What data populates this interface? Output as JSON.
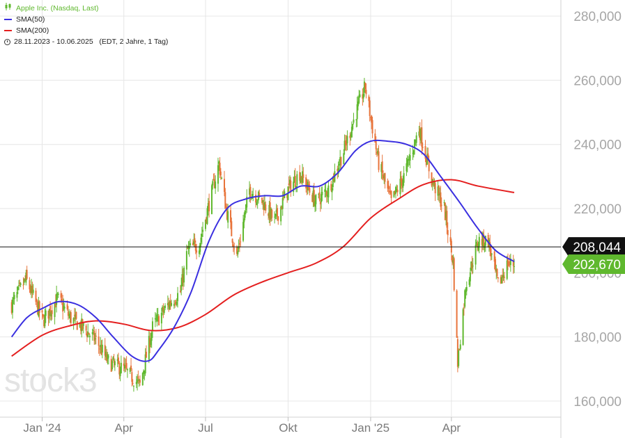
{
  "legend": {
    "series": "Apple Inc. (Nasdaq, Last)",
    "sma50": "SMA(50)",
    "sma200": "SMA(200)",
    "range": "28.11.2023 - 10.06.2025   (EDT, 2 Jahre, 1 Tag)"
  },
  "watermark": "stock3",
  "colors": {
    "up": "#5fb82e",
    "down": "#e8743b",
    "sma50": "#3a2fe0",
    "sma200": "#e41f1f",
    "grid": "#e6e6e6",
    "last_box": "#5fb82e",
    "marker_box": "#111111"
  },
  "chart_data": {
    "type": "line",
    "title": "Apple Inc. (Nasdaq, Last)",
    "ylim": [
      155,
      285
    ],
    "y_ticks": [
      "280,000",
      "260,000",
      "240,000",
      "220,000",
      "200,000",
      "180,000",
      "160,000"
    ],
    "y_tick_values": [
      280,
      260,
      240,
      220,
      200,
      180,
      160
    ],
    "x_ticks": [
      "Jan '24",
      "Apr",
      "Jul",
      "Okt",
      "Jan '25",
      "Apr"
    ],
    "x_tick_dates": [
      "2024-01-01",
      "2024-04-01",
      "2024-07-01",
      "2024-10-01",
      "2025-01-01",
      "2025-04-01"
    ],
    "x_range": [
      "2023-11-15",
      "2025-08-01"
    ],
    "reference_line": {
      "value": 208.044,
      "label": "208,044"
    },
    "last_value": {
      "value": 202.67,
      "label": "202,670"
    },
    "price": [
      [
        "2023-11-28",
        190
      ],
      [
        "2023-12-14",
        198
      ],
      [
        "2024-01-02",
        185
      ],
      [
        "2024-01-18",
        192
      ],
      [
        "2024-02-01",
        186
      ],
      [
        "2024-02-15",
        183
      ],
      [
        "2024-03-01",
        179
      ],
      [
        "2024-03-15",
        172
      ],
      [
        "2024-04-01",
        170
      ],
      [
        "2024-04-19",
        165
      ],
      [
        "2024-05-03",
        183
      ],
      [
        "2024-05-20",
        190
      ],
      [
        "2024-06-03",
        194
      ],
      [
        "2024-06-11",
        207
      ],
      [
        "2024-06-24",
        209
      ],
      [
        "2024-07-08",
        225
      ],
      [
        "2024-07-16",
        234
      ],
      [
        "2024-07-24",
        220
      ],
      [
        "2024-08-05",
        205
      ],
      [
        "2024-08-19",
        226
      ],
      [
        "2024-09-03",
        222
      ],
      [
        "2024-09-16",
        216
      ],
      [
        "2024-10-01",
        226
      ],
      [
        "2024-10-14",
        231
      ],
      [
        "2024-11-01",
        222
      ],
      [
        "2024-11-15",
        226
      ],
      [
        "2024-12-02",
        238
      ],
      [
        "2024-12-16",
        250
      ],
      [
        "2024-12-26",
        258
      ],
      [
        "2025-01-10",
        234
      ],
      [
        "2025-01-24",
        222
      ],
      [
        "2025-02-07",
        230
      ],
      [
        "2025-02-24",
        245
      ],
      [
        "2025-03-10",
        229
      ],
      [
        "2025-03-24",
        220
      ],
      [
        "2025-04-03",
        203
      ],
      [
        "2025-04-08",
        172
      ],
      [
        "2025-04-17",
        196
      ],
      [
        "2025-05-01",
        210
      ],
      [
        "2025-05-12",
        210
      ],
      [
        "2025-05-23",
        196
      ],
      [
        "2025-06-03",
        203
      ],
      [
        "2025-06-10",
        202.67
      ]
    ],
    "sma50": [
      [
        "2023-11-28",
        180
      ],
      [
        "2023-12-15",
        186
      ],
      [
        "2024-01-02",
        189
      ],
      [
        "2024-01-20",
        191
      ],
      [
        "2024-02-10",
        190
      ],
      [
        "2024-03-01",
        186
      ],
      [
        "2024-03-20",
        180
      ],
      [
        "2024-04-10",
        174
      ],
      [
        "2024-04-28",
        172.5
      ],
      [
        "2024-05-10",
        176
      ],
      [
        "2024-05-27",
        183
      ],
      [
        "2024-06-15",
        194
      ],
      [
        "2024-07-05",
        210
      ],
      [
        "2024-07-25",
        220
      ],
      [
        "2024-08-15",
        223
      ],
      [
        "2024-09-05",
        224
      ],
      [
        "2024-09-25",
        224
      ],
      [
        "2024-10-15",
        227
      ],
      [
        "2024-11-05",
        227
      ],
      [
        "2024-11-25",
        231
      ],
      [
        "2024-12-15",
        238
      ],
      [
        "2025-01-01",
        241
      ],
      [
        "2025-01-20",
        241
      ],
      [
        "2025-02-10",
        240
      ],
      [
        "2025-03-01",
        237
      ],
      [
        "2025-03-20",
        230
      ],
      [
        "2025-04-10",
        222
      ],
      [
        "2025-04-30",
        214
      ],
      [
        "2025-05-20",
        207
      ],
      [
        "2025-06-10",
        203.5
      ]
    ],
    "sma200": [
      [
        "2023-11-28",
        174
      ],
      [
        "2024-01-01",
        180.5
      ],
      [
        "2024-02-01",
        183.5
      ],
      [
        "2024-03-01",
        185
      ],
      [
        "2024-04-01",
        184
      ],
      [
        "2024-05-01",
        182
      ],
      [
        "2024-06-01",
        183
      ],
      [
        "2024-07-01",
        187
      ],
      [
        "2024-08-01",
        193
      ],
      [
        "2024-09-01",
        197
      ],
      [
        "2024-10-01",
        200
      ],
      [
        "2024-11-01",
        203
      ],
      [
        "2024-12-01",
        208
      ],
      [
        "2025-01-01",
        217
      ],
      [
        "2025-02-01",
        223
      ],
      [
        "2025-03-01",
        227.5
      ],
      [
        "2025-04-01",
        229
      ],
      [
        "2025-05-01",
        227
      ],
      [
        "2025-06-10",
        225
      ]
    ]
  }
}
